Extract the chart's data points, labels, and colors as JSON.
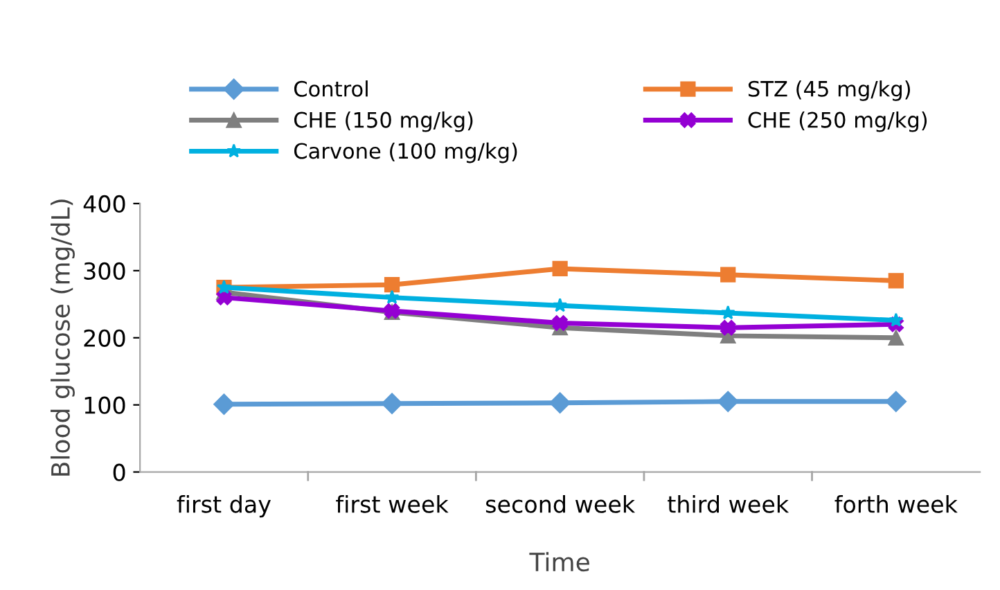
{
  "chart_data": {
    "type": "line",
    "xlabel": "Time",
    "ylabel": "Blood glucose (mg/dL)",
    "categories": [
      "first day",
      "first week",
      "second week",
      "third week",
      "forth week"
    ],
    "series": [
      {
        "name": "Control",
        "color": "#5b9bd5",
        "marker": "diamond",
        "values": [
          101,
          102,
          103,
          105,
          105
        ]
      },
      {
        "name": "STZ (45 mg/kg)",
        "color": "#ed7d31",
        "marker": "square",
        "values": [
          275,
          279,
          303,
          294,
          285
        ]
      },
      {
        "name": "CHE (150 mg/kg)",
        "color": "#7f7f7f",
        "marker": "triangle",
        "values": [
          268,
          238,
          215,
          203,
          200
        ]
      },
      {
        "name": "CHE (250 mg/kg)",
        "color": "#9400d3",
        "marker": "cross",
        "values": [
          260,
          240,
          222,
          215,
          220
        ]
      },
      {
        "name": "Carvone (100 mg/kg)",
        "color": "#00b0e0",
        "marker": "star",
        "values": [
          275,
          260,
          248,
          237,
          226
        ]
      }
    ],
    "ylim": [
      0,
      400
    ],
    "yticks": [
      0,
      100,
      200,
      300,
      400
    ],
    "grid": false,
    "legend": "top"
  }
}
